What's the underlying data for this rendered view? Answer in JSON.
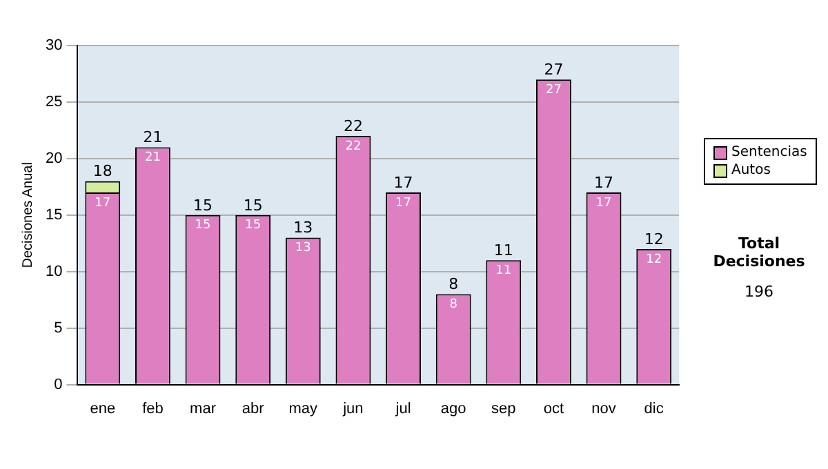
{
  "chart_data": {
    "type": "bar",
    "stacked": true,
    "ylabel": "Decisiones Anual",
    "categories": [
      "ene",
      "feb",
      "mar",
      "abr",
      "may",
      "jun",
      "jul",
      "ago",
      "sep",
      "oct",
      "nov",
      "dic"
    ],
    "series": [
      {
        "name": "Sentencias",
        "color": "#dd7fc0",
        "values": [
          17,
          21,
          15,
          15,
          13,
          22,
          17,
          8,
          11,
          27,
          17,
          12
        ],
        "value_labels": [
          "17",
          "21",
          "15",
          "15",
          "13",
          "22",
          "17",
          "8",
          "11",
          "27",
          "17",
          "12"
        ]
      },
      {
        "name": "Autos",
        "color": "#d5ec9a",
        "values": [
          1,
          null,
          null,
          null,
          null,
          null,
          null,
          null,
          null,
          null,
          null,
          null
        ]
      }
    ],
    "totals": [
      "18",
      "21",
      "15",
      "15",
      "13",
      "22",
      "17",
      "8",
      "11",
      "27",
      "17",
      "12"
    ],
    "ylim": [
      0,
      30
    ],
    "yticks": [
      0,
      5,
      10,
      15,
      20,
      25,
      30
    ],
    "grid": "y",
    "legend": "right",
    "annotations": [
      "Total Decisiones",
      "196"
    ]
  }
}
